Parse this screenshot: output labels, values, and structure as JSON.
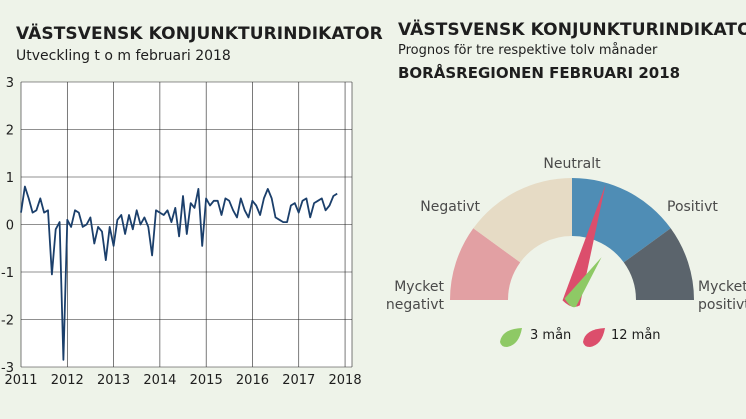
{
  "left": {
    "title": "VÄSTSVENSK KONJUNKTURINDIKATOR",
    "subtitle": "Utveckling t o m februari 2018"
  },
  "right": {
    "title": "VÄSTSVENSK KONJUNKTURINDIKATOR",
    "subtitle": "Prognos för tre respektive tolv månader",
    "region": "BORÅSREGIONEN FEBRUARI 2018"
  },
  "chart_data": [
    {
      "type": "line",
      "title": "VÄSTSVENSK KONJUNKTURINDIKATOR",
      "subtitle": "Utveckling t o m februari 2018",
      "ylim": [
        -3,
        3
      ],
      "yticks": [
        "3",
        "2",
        "1",
        "0",
        "-1",
        "-2",
        "-3"
      ],
      "ytick_values": [
        3,
        2,
        1,
        0,
        -1,
        -2,
        -3
      ],
      "xlim": [
        2011,
        2018.15
      ],
      "xticks": [
        "2011",
        "2012",
        "2013",
        "2014",
        "2015",
        "2016",
        "2017",
        "2018"
      ],
      "xtick_values": [
        2011,
        2012,
        2013,
        2014,
        2015,
        2016,
        2017,
        2018
      ],
      "grid": true,
      "color": "#1b3f6b",
      "series": [
        {
          "x_start": 2011.0,
          "x_step": 0.0833,
          "values": [
            0.25,
            0.8,
            0.55,
            0.25,
            0.3,
            0.55,
            0.25,
            0.3,
            -1.05,
            -0.1,
            0.05,
            -2.85,
            0.1,
            -0.05,
            0.3,
            0.25,
            -0.05,
            0.0,
            0.15,
            -0.4,
            -0.05,
            -0.15,
            -0.75,
            -0.05,
            -0.45,
            0.1,
            0.2,
            -0.2,
            0.2,
            -0.1,
            0.3,
            0.0,
            0.15,
            -0.05,
            -0.65,
            0.3,
            0.25,
            0.2,
            0.3,
            0.05,
            0.35,
            -0.25,
            0.6,
            -0.2,
            0.45,
            0.35,
            0.75,
            -0.45,
            0.55,
            0.4,
            0.5,
            0.5,
            0.2,
            0.55,
            0.5,
            0.3,
            0.15,
            0.55,
            0.3,
            0.15,
            0.5,
            0.4,
            0.2,
            0.55,
            0.75,
            0.55,
            0.15,
            0.1,
            0.05,
            0.05,
            0.4,
            0.45,
            0.25,
            0.5,
            0.55,
            0.15,
            0.45,
            0.5,
            0.55,
            0.3,
            0.4,
            0.6,
            0.65
          ]
        }
      ]
    },
    {
      "type": "pie",
      "subtype": "gauge",
      "categories": [
        "Mycket negativt",
        "Negativt",
        "Neutralt",
        "Positivt",
        "Mycket positivt"
      ],
      "segment_labels": {
        "mycket_negativt": [
          "Mycket",
          "negativt"
        ],
        "negativt": "Negativt",
        "neutralt": "Neutralt",
        "positivt": "Positivt",
        "mycket_positivt": [
          "Mycket",
          "positivt"
        ]
      },
      "segment_colors": [
        "#e2a0a3",
        "#e6dbc5",
        "#4f8db5",
        "#4f8db5",
        "#5b646c"
      ],
      "gauge_scale": [
        -1,
        1
      ],
      "needles": [
        {
          "name": "3 mån",
          "value": 0.14,
          "color": "#8ec965"
        },
        {
          "name": "12 mån",
          "value": 0.18,
          "color": "#dc4e6c"
        }
      ]
    }
  ]
}
